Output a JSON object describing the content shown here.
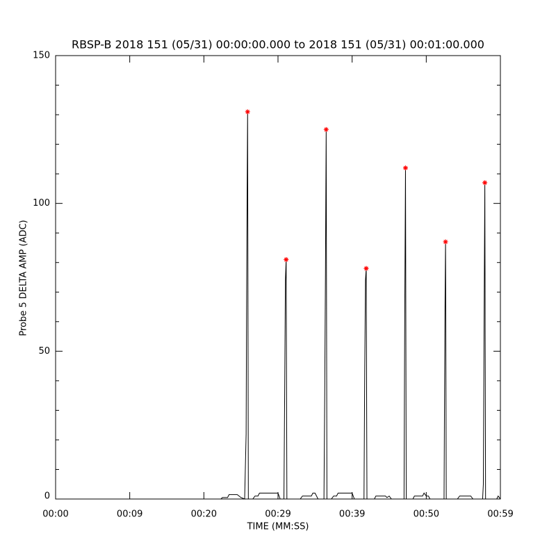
{
  "chart_data": {
    "type": "line",
    "title": "RBSP-B 2018 151 (05/31) 00:00:00.000 to 2018 151 (05/31) 00:01:00.000",
    "xlabel": "TIME (MM:SS)",
    "ylabel": "Probe 5 DELTA AMP (ADC)",
    "color": "#000000",
    "x": [
      0,
      22.3,
      22.5,
      23.2,
      23.4,
      24.5,
      25.0,
      25.5,
      25.7,
      25.8,
      25.9,
      26.0,
      26.6,
      26.9,
      27.3,
      27.5,
      30.0,
      30.3,
      30.8,
      30.9,
      31.0,
      31.1,
      31.2,
      33.0,
      33.3,
      34.5,
      34.7,
      35.0,
      35.4,
      36.2,
      36.3,
      36.4,
      36.5,
      36.6,
      37.2,
      37.5,
      37.9,
      38.1,
      40.0,
      40.3,
      41.6,
      41.7,
      41.8,
      41.9,
      42.0,
      43.0,
      43.2,
      44.5,
      44.7,
      45.0,
      45.3,
      47.0,
      47.1,
      47.2,
      47.3,
      48.2,
      48.4,
      49.5,
      49.7,
      50.0,
      50.3,
      50.5,
      52.4,
      52.5,
      52.55,
      52.6,
      52.7,
      54.2,
      54.5,
      56.0,
      56.3,
      57.6,
      57.7,
      57.8,
      57.9,
      58.0,
      59.5,
      59.7,
      60
    ],
    "values": [
      0,
      0,
      0.5,
      0.5,
      1.5,
      1.5,
      0.5,
      0,
      22,
      88,
      131,
      0,
      0,
      1,
      1,
      2,
      2,
      0,
      0,
      36,
      74,
      81,
      0,
      0,
      1,
      1,
      2,
      2,
      0,
      0,
      35,
      76,
      125,
      0,
      0,
      1,
      1,
      2,
      2,
      0,
      0,
      44,
      74,
      78,
      0,
      0,
      1,
      1,
      0.5,
      1,
      0,
      0,
      64,
      112,
      0,
      0,
      1,
      1,
      2,
      1,
      1,
      0,
      0,
      53,
      72,
      87,
      0,
      0,
      1,
      1,
      0,
      0,
      5,
      59,
      107,
      0,
      0,
      1,
      0
    ],
    "peak_x": [
      25.9,
      31.1,
      36.5,
      41.9,
      47.2,
      52.6,
      57.9
    ],
    "peak_values": [
      131,
      81,
      125,
      78,
      112,
      87,
      107
    ],
    "peak_color": "#ff0000",
    "xlim": [
      0,
      60
    ],
    "ylim": [
      0,
      150
    ],
    "xticks": [
      {
        "value": 0,
        "label": "00:00"
      },
      {
        "value": 10,
        "label": "00:09"
      },
      {
        "value": 20,
        "label": "00:20"
      },
      {
        "value": 30,
        "label": "00:29"
      },
      {
        "value": 40,
        "label": "00:39"
      },
      {
        "value": 50,
        "label": "00:50"
      },
      {
        "value": 60,
        "label": "00:59"
      }
    ],
    "yticks": [
      0,
      50,
      100,
      150
    ],
    "yminor": 5
  }
}
